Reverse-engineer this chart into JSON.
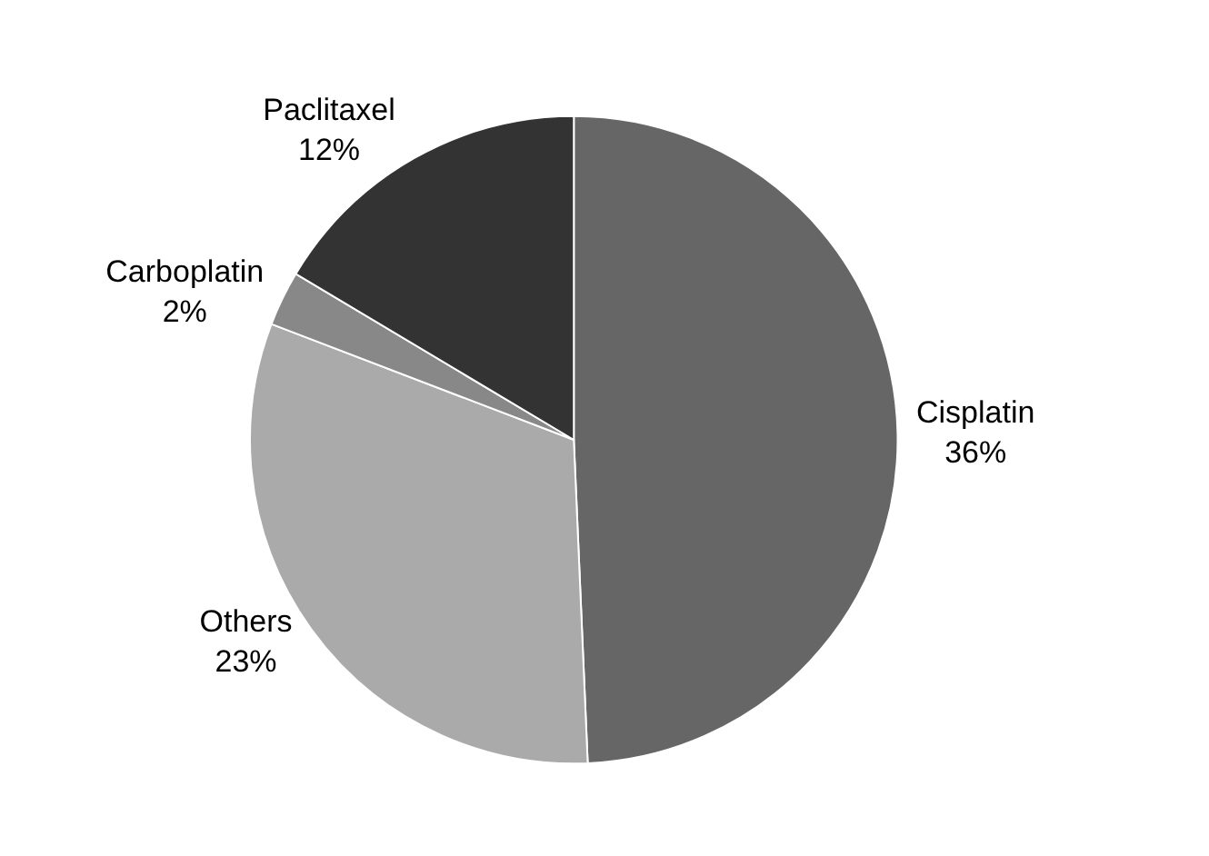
{
  "chart_data": {
    "type": "pie",
    "categories": [
      "Cisplatin",
      "Others",
      "Carboplatin",
      "Paclitaxel"
    ],
    "values": [
      36,
      23,
      2,
      12
    ],
    "value_labels": [
      "36%",
      "23%",
      "2%",
      "12%"
    ],
    "colors": [
      "#666666",
      "#aaaaaa",
      "#888888",
      "#333333"
    ],
    "legend": false
  }
}
